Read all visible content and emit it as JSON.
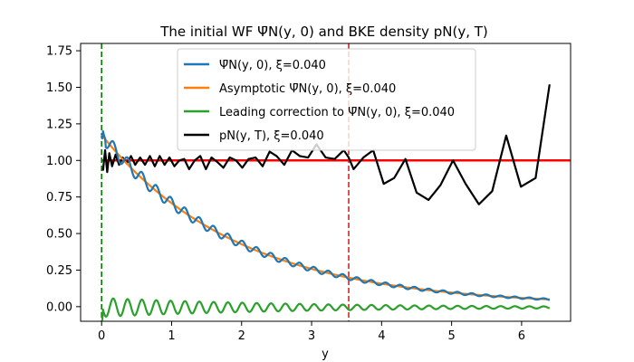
{
  "chart_data": {
    "type": "line",
    "title": "The initial WF Ψ̄N(y, 0) and BKE density pN(y, T)",
    "xlabel": "y",
    "ylabel": "",
    "xlim": [
      -0.3,
      6.7
    ],
    "ylim": [
      -0.1,
      1.8
    ],
    "xticks": [
      0,
      1,
      2,
      3,
      4,
      5,
      6
    ],
    "yticks": [
      0.0,
      0.25,
      0.5,
      0.75,
      1.0,
      1.25,
      1.5,
      1.75
    ],
    "ytick_labels": [
      "0.00",
      "0.25",
      "0.50",
      "0.75",
      "1.00",
      "1.25",
      "1.50",
      "1.75"
    ],
    "legend_loc": "upper-center",
    "legend": [
      {
        "label": "Ψ̄N(y, 0), ξ=0.040",
        "color": "#1f77b4"
      },
      {
        "label": "Asymptotic Ψ̄N(y, 0), ξ=0.040",
        "color": "#ff7f0e"
      },
      {
        "label": "Leading correction to Ψ̄N(y, 0), ξ=0.040",
        "color": "#2ca02c"
      },
      {
        "label": "pN(y, T), ξ=0.040",
        "color": "#000000"
      }
    ],
    "hline": {
      "y": 1.0,
      "color": "#ff0000"
    },
    "vlines": [
      {
        "x": 0.0,
        "color": "#008000",
        "style": "dashed"
      },
      {
        "x": 3.53,
        "color": "#d62728",
        "style": "dashed"
      }
    ],
    "series": [
      {
        "name": "pN(y, T), ξ=0.040",
        "color": "#000000",
        "x": [
          0.02,
          0.05,
          0.08,
          0.11,
          0.15,
          0.2,
          0.25,
          0.3,
          0.36,
          0.42,
          0.48,
          0.55,
          0.62,
          0.69,
          0.76,
          0.83,
          0.9,
          0.97,
          1.04,
          1.11,
          1.18,
          1.25,
          1.33,
          1.41,
          1.49,
          1.57,
          1.65,
          1.74,
          1.83,
          1.92,
          2.01,
          2.1,
          2.2,
          2.3,
          2.4,
          2.5,
          2.61,
          2.72,
          2.83,
          2.95,
          3.07,
          3.2,
          3.33,
          3.46,
          3.53,
          3.6,
          3.74,
          3.88,
          4.03,
          4.18,
          4.34,
          4.5,
          4.67,
          4.84,
          5.02,
          5.2,
          5.39,
          5.58,
          5.78,
          5.99,
          6.2,
          6.4
        ],
        "values": [
          0.93,
          1.07,
          0.92,
          1.05,
          0.96,
          1.04,
          0.97,
          1.02,
          0.98,
          1.03,
          0.97,
          1.02,
          0.97,
          1.03,
          0.96,
          1.03,
          0.97,
          1.02,
          0.96,
          1.0,
          1.01,
          0.94,
          1.0,
          1.03,
          0.94,
          1.02,
          0.99,
          0.95,
          1.02,
          1.0,
          0.95,
          1.01,
          1.02,
          0.96,
          1.06,
          1.03,
          0.97,
          1.07,
          1.03,
          1.02,
          1.11,
          1.02,
          1.01,
          1.07,
          1.02,
          0.94,
          1.02,
          1.07,
          0.84,
          0.88,
          1.01,
          0.78,
          0.73,
          0.83,
          1.0,
          0.84,
          0.7,
          0.79,
          1.17,
          0.82,
          0.88,
          1.52
        ]
      },
      {
        "name": "Asymptotic Ψ̄N(y, 0), ξ=0.040",
        "color": "#ff7f0e",
        "fn": "asymptotic",
        "xrange": [
          0.0,
          6.4
        ]
      },
      {
        "name": "Ψ̄N(y, 0), ξ=0.040",
        "color": "#1f77b4",
        "fn": "wf",
        "xrange": [
          0.0,
          6.4
        ]
      },
      {
        "name": "Leading correction to Ψ̄N(y, 0), ξ=0.040",
        "color": "#2ca02c",
        "fn": "correction",
        "xrange": [
          0.0,
          6.4
        ]
      }
    ]
  }
}
